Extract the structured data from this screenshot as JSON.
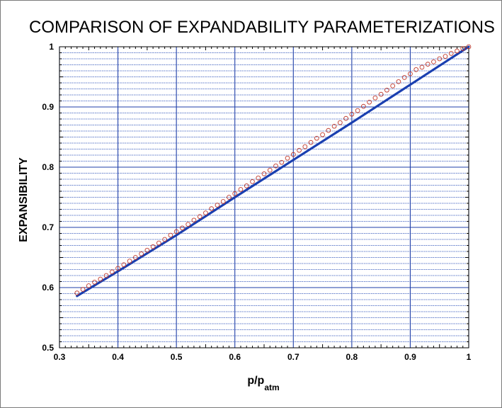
{
  "chart_data": {
    "type": "line",
    "title": "COMPARISON OF EXPANDABILITY PARAMETERIZATIONS",
    "xlabel": "p/p",
    "xlabel_subscript": "atm",
    "ylabel": "EXPANSIBILITY",
    "xlim": [
      0.3,
      1.0
    ],
    "ylim": [
      0.5,
      1.0
    ],
    "xticks": [
      "0.3",
      "0.4",
      "0.5",
      "0.6",
      "0.7",
      "0.8",
      "0.9",
      "1"
    ],
    "yticks": [
      "0.5",
      "0.6",
      "0.7",
      "0.8",
      "0.9",
      "1"
    ],
    "grid": true,
    "colors": {
      "line": "#1a3fb0",
      "markers": "#c0392b",
      "grid_major": "#1f3fa8",
      "grid_minor": "#2a4fb8"
    },
    "series": [
      {
        "style": "line",
        "x": [
          0.33,
          0.4,
          0.5,
          0.6,
          0.7,
          0.8,
          0.9,
          1.0
        ],
        "y": [
          0.586,
          0.627,
          0.687,
          0.75,
          0.812,
          0.874,
          0.937,
          1.0
        ]
      },
      {
        "style": "markers",
        "x": [
          0.33,
          0.34,
          0.35,
          0.36,
          0.37,
          0.38,
          0.39,
          0.4,
          0.41,
          0.42,
          0.43,
          0.44,
          0.45,
          0.46,
          0.47,
          0.48,
          0.49,
          0.5,
          0.51,
          0.52,
          0.53,
          0.54,
          0.55,
          0.56,
          0.57,
          0.58,
          0.59,
          0.6,
          0.61,
          0.62,
          0.63,
          0.64,
          0.65,
          0.66,
          0.67,
          0.68,
          0.69,
          0.7,
          0.71,
          0.72,
          0.73,
          0.74,
          0.75,
          0.76,
          0.77,
          0.78,
          0.79,
          0.8,
          0.81,
          0.82,
          0.83,
          0.84,
          0.85,
          0.86,
          0.87,
          0.88,
          0.89,
          0.9,
          0.91,
          0.92,
          0.93,
          0.94,
          0.95,
          0.96,
          0.97,
          0.98,
          0.99,
          1.0
        ],
        "y": [
          0.591,
          0.597,
          0.603,
          0.609,
          0.614,
          0.62,
          0.626,
          0.632,
          0.638,
          0.644,
          0.65,
          0.656,
          0.662,
          0.668,
          0.674,
          0.68,
          0.687,
          0.693,
          0.699,
          0.705,
          0.712,
          0.718,
          0.724,
          0.731,
          0.737,
          0.743,
          0.75,
          0.756,
          0.763,
          0.769,
          0.776,
          0.782,
          0.789,
          0.795,
          0.802,
          0.808,
          0.815,
          0.821,
          0.828,
          0.834,
          0.841,
          0.848,
          0.854,
          0.861,
          0.868,
          0.874,
          0.881,
          0.888,
          0.894,
          0.901,
          0.908,
          0.915,
          0.921,
          0.928,
          0.935,
          0.942,
          0.949,
          0.955,
          0.962,
          0.966,
          0.971,
          0.975,
          0.98,
          0.984,
          0.989,
          0.993,
          0.997,
          1.0
        ]
      }
    ]
  }
}
